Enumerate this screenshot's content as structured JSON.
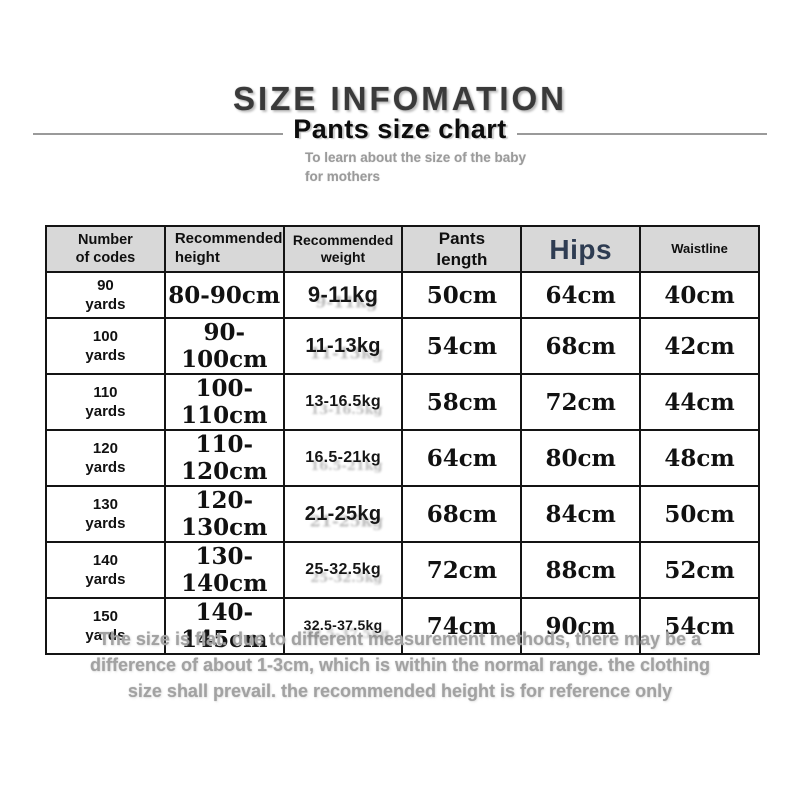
{
  "header": {
    "title": "SIZE INFOMATION",
    "subtitle": "Pants size chart",
    "note": "To learn about the size of the baby\nfor mothers"
  },
  "footer": {
    "text": "The size is flat. due to different measurement methods, there may be a\ndifference of about 1-3cm, which is within the normal range. the clothing\nsize shall prevail. the recommended height is for reference only"
  },
  "colors": {
    "hips_header_text": "#2e3c52",
    "table_header_bg": "#d8d8d8",
    "title_text": "#3a3a3a",
    "muted_gray_text": "#9b9b9b",
    "table_border": "#141414"
  },
  "chart_data": {
    "type": "table",
    "title": "Pants size chart",
    "columns": [
      "Number\nof codes",
      "Recommended\nheight",
      "Recommended\nweight",
      "Pants\nlength",
      "Hips",
      "Waistline"
    ],
    "rows": [
      [
        "90\nyards",
        "80-90cm",
        "9-11kg",
        "50cm",
        "64cm",
        "40cm"
      ],
      [
        "100\nyards",
        "90-100cm",
        "11-13kg",
        "54cm",
        "68cm",
        "42cm"
      ],
      [
        "110\nyards",
        "100-110cm",
        "13-16.5kg",
        "58cm",
        "72cm",
        "44cm"
      ],
      [
        "120\nyards",
        "110-120cm",
        "16.5-21kg",
        "64cm",
        "80cm",
        "48cm"
      ],
      [
        "130\nyards",
        "120-130cm",
        "21-25kg",
        "68cm",
        "84cm",
        "50cm"
      ],
      [
        "140\nyards",
        "130-140cm",
        "25-32.5kg",
        "72cm",
        "88cm",
        "52cm"
      ],
      [
        "150\nyards",
        "140-145cm",
        "32.5-37.5kg",
        "74cm",
        "90cm",
        "54cm"
      ]
    ]
  }
}
